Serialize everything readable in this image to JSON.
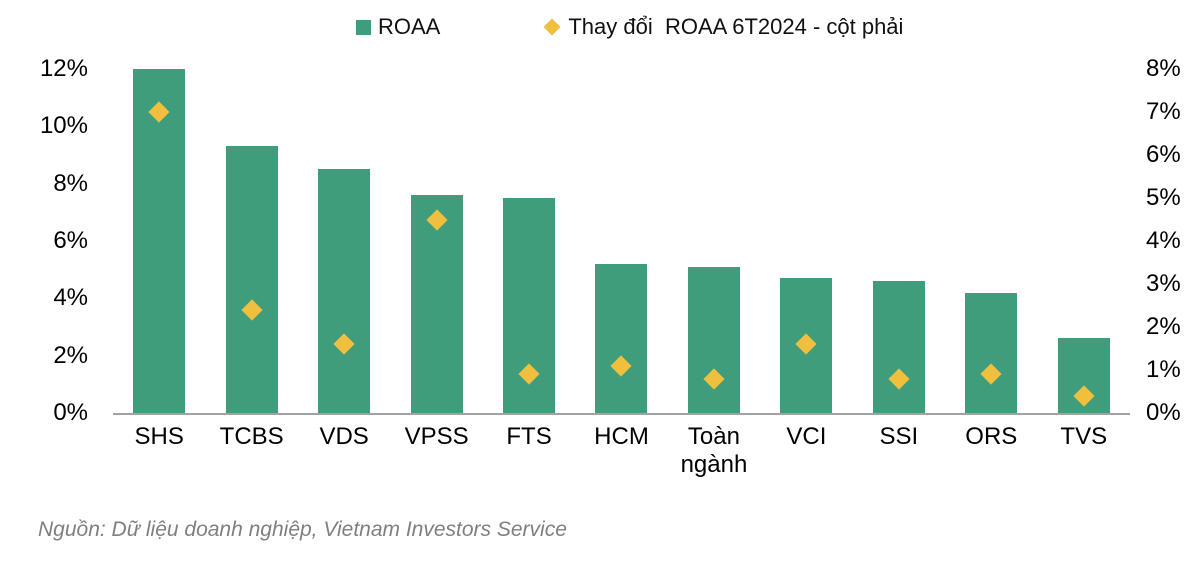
{
  "legend": [
    {
      "label": "ROAA",
      "marker": "square",
      "color": "#3F9D7C"
    },
    {
      "label": "Thay đổi  ROAA 6T2024 - cột phải",
      "marker": "diamond",
      "color": "#EFBF3D"
    }
  ],
  "chart_data": {
    "type": "bar",
    "categories": [
      "SHS",
      "TCBS",
      "VDS",
      "VPSS",
      "FTS",
      "HCM",
      "Toàn ngành",
      "VCI",
      "SSI",
      "ORS",
      "TVS"
    ],
    "series": [
      {
        "name": "ROAA",
        "type": "bar",
        "axis": "left",
        "color": "#3F9D7C",
        "values": [
          12.0,
          9.3,
          8.5,
          7.6,
          7.5,
          5.2,
          5.1,
          4.7,
          4.6,
          4.2,
          2.6
        ]
      },
      {
        "name": "Thay đổi  ROAA 6T2024 - cột phải",
        "type": "diamond-marker",
        "axis": "right",
        "color": "#EFBF3D",
        "values": [
          7.0,
          2.4,
          1.6,
          4.5,
          0.9,
          1.1,
          0.8,
          1.6,
          0.8,
          0.9,
          0.4
        ]
      }
    ],
    "left_axis": {
      "min": 0,
      "max": 12,
      "ticks": [
        "12%",
        "10%",
        "8%",
        "6%",
        "4%",
        "2%",
        "0%"
      ]
    },
    "right_axis": {
      "min": 0,
      "max": 8,
      "ticks": [
        "8%",
        "7%",
        "6%",
        "5%",
        "4%",
        "3%",
        "2%",
        "1%",
        "0%"
      ]
    },
    "grid": false,
    "legend_position": "top",
    "axis_line_color": "#A2A2A2"
  },
  "source_note": "Nguồn: Dữ liệu doanh nghiệp, Vietnam Investors Service"
}
